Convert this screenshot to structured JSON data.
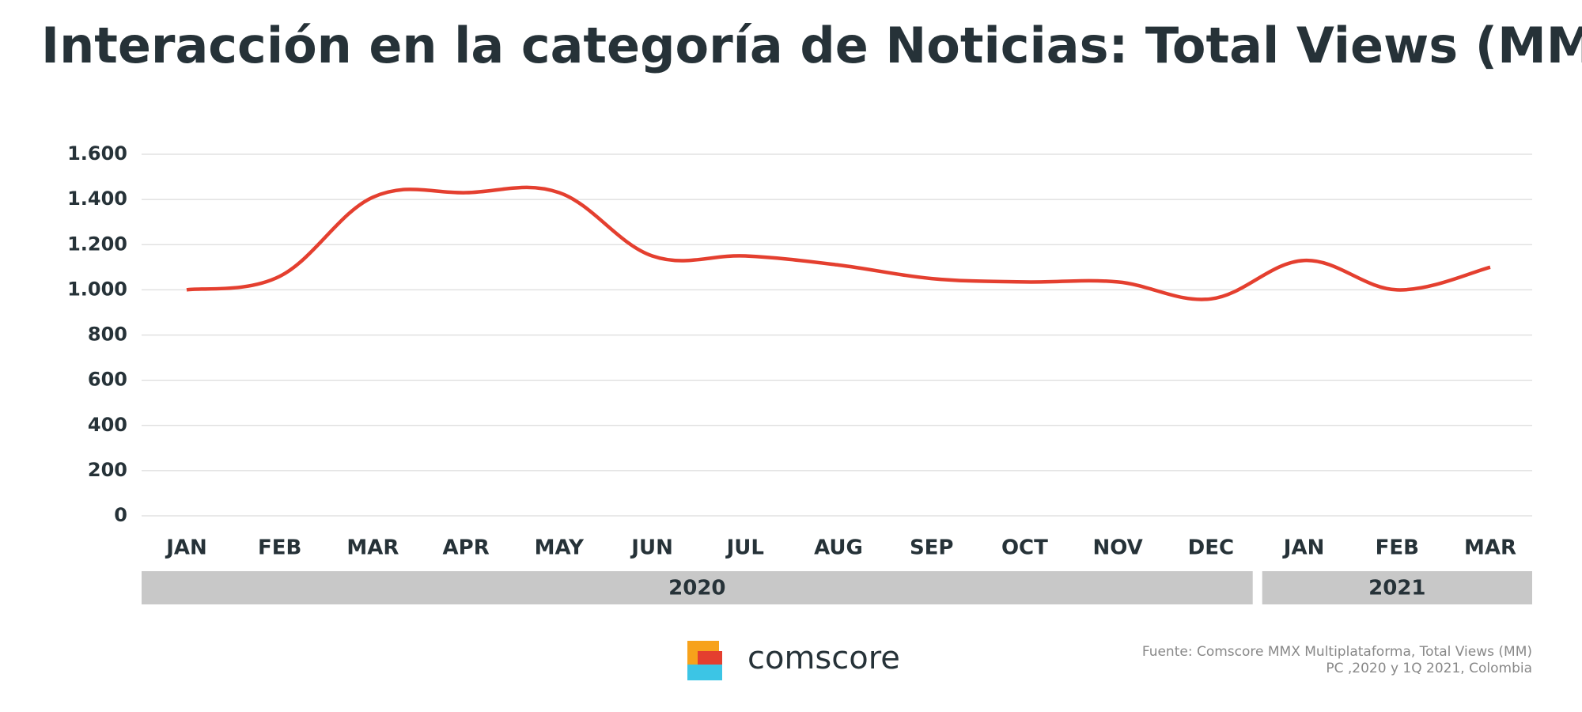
{
  "chart_data": {
    "type": "line",
    "title": "Interacción en la categoría de Noticias: Total Views (MM)",
    "categories": [
      "JAN",
      "FEB",
      "MAR",
      "APR",
      "MAY",
      "JUN",
      "JUL",
      "AUG",
      "SEP",
      "OCT",
      "NOV",
      "DEC",
      "JAN",
      "FEB",
      "MAR"
    ],
    "groups": [
      {
        "label": "2020",
        "span": 12
      },
      {
        "label": "2021",
        "span": 3
      }
    ],
    "series": [
      {
        "name": "Total Views",
        "color": "#e43f2f",
        "values": [
          1000,
          1060,
          1410,
          1430,
          1430,
          1150,
          1150,
          1110,
          1050,
          1035,
          1035,
          960,
          1130,
          1000,
          1100
        ]
      }
    ],
    "ylim": [
      0,
      1600
    ],
    "yticks": [
      0,
      200,
      400,
      600,
      800,
      {
        "value": 1000,
        "label": "1.000"
      },
      {
        "value": 1200,
        "label": "1.200"
      },
      {
        "value": 1400,
        "label": "1.400"
      },
      {
        "value": 1600,
        "label": "1.600"
      }
    ],
    "grid": true,
    "brand": "comscore",
    "source": [
      "Fuente: Comscore MMX Multiplataforma, Total Views (MM)",
      "PC ,2020 y 1Q 2021, Colombia"
    ]
  }
}
